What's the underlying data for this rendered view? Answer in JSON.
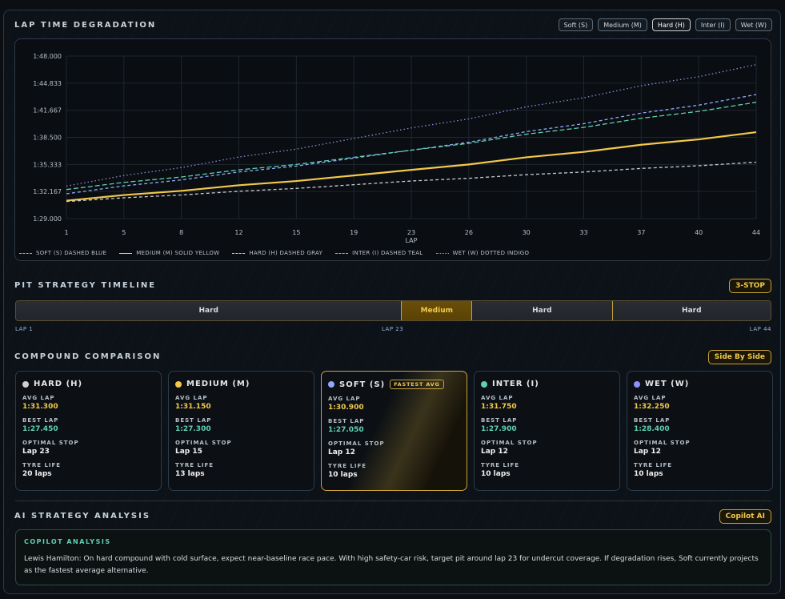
{
  "header": {
    "title": "LAP TIME DEGRADATION"
  },
  "compound_buttons": [
    {
      "label": "Soft (S)",
      "active": false
    },
    {
      "label": "Medium (M)",
      "active": false
    },
    {
      "label": "Hard (H)",
      "active": true
    },
    {
      "label": "Inter (I)",
      "active": false
    },
    {
      "label": "Wet (W)",
      "active": false
    }
  ],
  "chart_data": {
    "type": "line",
    "xlabel": "LAP",
    "ylabel": "",
    "xlim": [
      1,
      44
    ],
    "ylim": [
      89.0,
      108.0
    ],
    "x_ticks": [
      1,
      5,
      8,
      12,
      15,
      19,
      23,
      26,
      30,
      33,
      37,
      40,
      44
    ],
    "y_ticks": [
      {
        "value": 89.0,
        "label": "1:29.000"
      },
      {
        "value": 92.167,
        "label": "1:32.167"
      },
      {
        "value": 95.333,
        "label": "1:35.333"
      },
      {
        "value": 98.5,
        "label": "1:38.500"
      },
      {
        "value": 101.667,
        "label": "1:41.667"
      },
      {
        "value": 104.833,
        "label": "1:44.833"
      },
      {
        "value": 108.0,
        "label": "1:48.000"
      }
    ],
    "series": [
      {
        "name": "SOFT (S) DASHED BLUE",
        "color": "#8fa8ff",
        "dash": "4,3",
        "x": [
          1,
          23,
          44
        ],
        "y": [
          91.9,
          97.0,
          103.5
        ]
      },
      {
        "name": "MEDIUM (M) SOLID YELLOW",
        "color": "#f2c94c",
        "dash": "",
        "x": [
          1,
          23,
          44
        ],
        "y": [
          91.1,
          94.7,
          99.1
        ]
      },
      {
        "name": "HARD (H) DASHED GRAY",
        "color": "#c8ccd2",
        "dash": "4,3",
        "x": [
          1,
          23,
          44
        ],
        "y": [
          91.0,
          93.4,
          95.6
        ]
      },
      {
        "name": "INTER (I) DASHED TEAL",
        "color": "#5fd1b0",
        "dash": "6,3",
        "x": [
          1,
          23,
          44
        ],
        "y": [
          92.4,
          97.0,
          102.6
        ]
      },
      {
        "name": "WET (W) DOTTED INDIGO",
        "color": "#8f8fe0",
        "dash": "1.5,3",
        "x": [
          1,
          23,
          44
        ],
        "y": [
          92.8,
          99.6,
          107.0
        ]
      }
    ]
  },
  "pit": {
    "title": "PIT STRATEGY TIMELINE",
    "badge": "3-STOP",
    "stints": [
      {
        "label": "Hard",
        "laps": 22,
        "type": "hard"
      },
      {
        "label": "Medium",
        "laps": 4,
        "type": "medium"
      },
      {
        "label": "Hard",
        "laps": 8,
        "type": "hard"
      },
      {
        "label": "Hard",
        "laps": 9,
        "type": "hard"
      }
    ],
    "lap_start": "LAP 1",
    "lap_mid": "LAP 23",
    "lap_end": "LAP 44"
  },
  "comparison": {
    "title": "COMPOUND COMPARISON",
    "badge": "Side By Side",
    "labels": {
      "avg": "AVG LAP",
      "best": "BEST LAP",
      "stop": "OPTIMAL STOP",
      "life": "TYRE LIFE"
    },
    "fastest_tag": "FASTEST AVG",
    "cards": [
      {
        "name": "HARD (H)",
        "color": "#d0d0d0",
        "avg": "1:31.300",
        "best": "1:27.450",
        "stop": "Lap 23",
        "life": "20 laps",
        "best_flag": false
      },
      {
        "name": "MEDIUM (M)",
        "color": "#f2c94c",
        "avg": "1:31.150",
        "best": "1:27.300",
        "stop": "Lap 15",
        "life": "13 laps",
        "best_flag": false
      },
      {
        "name": "SOFT (S)",
        "color": "#8fa8ff",
        "avg": "1:30.900",
        "best": "1:27.050",
        "stop": "Lap 12",
        "life": "10 laps",
        "best_flag": true
      },
      {
        "name": "INTER (I)",
        "color": "#5fd1b0",
        "avg": "1:31.750",
        "best": "1:27.900",
        "stop": "Lap 12",
        "life": "10 laps",
        "best_flag": false
      },
      {
        "name": "WET (W)",
        "color": "#8f8fff",
        "avg": "1:32.250",
        "best": "1:28.400",
        "stop": "Lap 12",
        "life": "10 laps",
        "best_flag": false
      }
    ]
  },
  "ai": {
    "title": "AI STRATEGY ANALYSIS",
    "badge": "Copilot AI",
    "box_title": "COPILOT ANALYSIS",
    "text": "Lewis Hamilton: On hard compound with cold surface, expect near-baseline race pace. With high safety-car risk, target pit around lap 23 for undercut coverage. If degradation rises, Soft currently projects as the fastest average alternative."
  }
}
